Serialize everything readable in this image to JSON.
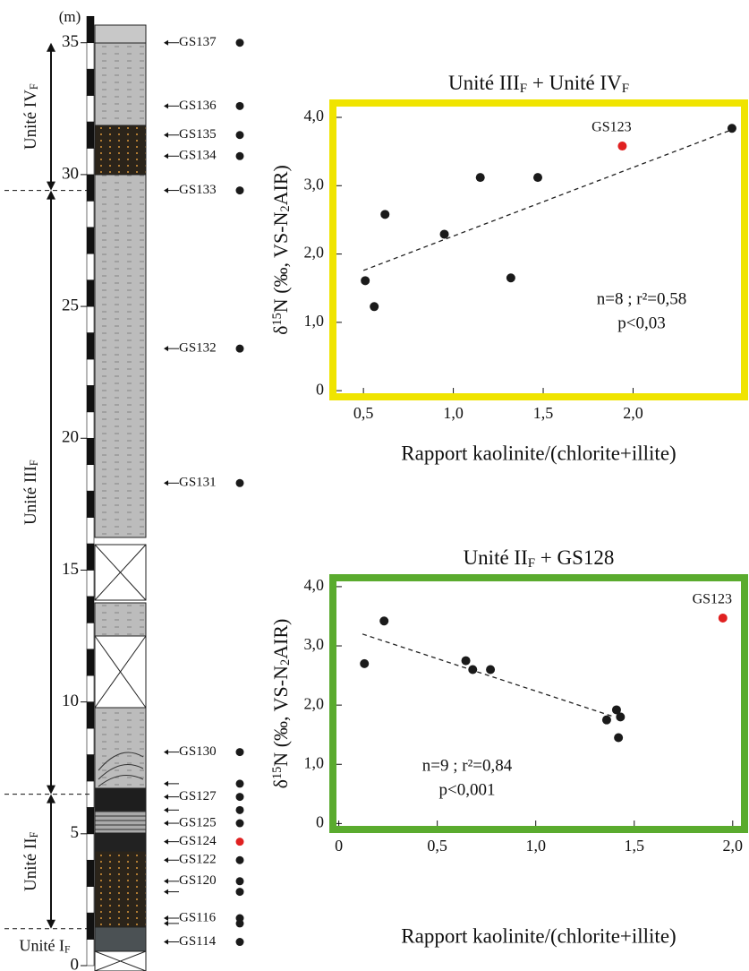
{
  "column": {
    "unit": "(m)",
    "ylim": [
      0,
      35.5
    ],
    "yticks": [
      0,
      5,
      10,
      15,
      20,
      25,
      30,
      35
    ],
    "dot_color": "#1a1a1a",
    "samples": [
      {
        "label": "GS137",
        "height": 35.0
      },
      {
        "label": "GS136",
        "height": 32.6
      },
      {
        "label": "GS135",
        "height": 31.5
      },
      {
        "label": "GS134",
        "height": 30.7
      },
      {
        "label": "GS133",
        "height": 29.4
      },
      {
        "label": "GS132",
        "height": 23.4
      },
      {
        "label": "GS131",
        "height": 18.3
      },
      {
        "label": "GS130",
        "height": 8.1
      },
      {
        "label": null,
        "height": 6.9
      },
      {
        "label": "GS127",
        "height": 6.4
      },
      {
        "label": null,
        "height": 5.9
      },
      {
        "label": "GS125",
        "height": 5.4
      },
      {
        "label": "GS124",
        "height": 4.7,
        "color": "#e02020"
      },
      {
        "label": "GS122",
        "height": 4.0
      },
      {
        "label": "GS120",
        "height": 3.2
      },
      {
        "label": null,
        "height": 2.8
      },
      {
        "label": "GS116",
        "height": 1.8
      },
      {
        "label": null,
        "height": 1.6
      },
      {
        "label": "GS114",
        "height": 0.9
      }
    ],
    "units": [
      {
        "name": "Unité IV",
        "sub": "F",
        "from": 29.4,
        "to": 35.0
      },
      {
        "name": "Unité III",
        "sub": "F",
        "from": 6.5,
        "to": 29.4
      },
      {
        "name": "Unité II",
        "sub": "F",
        "from": 1.4,
        "to": 6.5
      },
      {
        "name": "Unité I",
        "sub": "F",
        "from": 0,
        "to": 1.4
      }
    ]
  },
  "chart_data": [
    {
      "type": "scatter",
      "frame_color": "#f0e400",
      "title": [
        {
          "text": "Unité III"
        },
        {
          "text": "F",
          "pos": "sub"
        },
        {
          "text": " + Unité IV"
        },
        {
          "text": "F",
          "pos": "sub"
        }
      ],
      "xlabel": "Rapport kaolinite/(chlorite+illite)",
      "ylabel": [
        {
          "text": "δ"
        },
        {
          "text": "15",
          "pos": "sup"
        },
        {
          "text": "N (‰, VS-N"
        },
        {
          "text": "2",
          "pos": "sub"
        },
        {
          "text": "AIR)"
        }
      ],
      "xlim": [
        0.33,
        2.62
      ],
      "ylim": [
        -0.09,
        4.21
      ],
      "xticks": [
        {
          "value": 0.5,
          "label": "0,5"
        },
        {
          "value": 1.0,
          "label": "1,0"
        },
        {
          "value": 1.5,
          "label": "1,5"
        },
        {
          "value": 2.0,
          "label": "2,0"
        }
      ],
      "yticks": [
        0,
        {
          "value": 1.0,
          "label": "1,0"
        },
        {
          "value": 2.0,
          "label": "2,0"
        },
        {
          "value": 3.0,
          "label": "3,0"
        },
        {
          "value": 4.0,
          "label": "4,0"
        }
      ],
      "color": "#1a1a1a",
      "x": [
        0.51,
        0.56,
        0.62,
        0.95,
        1.15,
        1.32,
        1.47,
        2.55
      ],
      "y": [
        1.61,
        1.23,
        2.58,
        2.29,
        3.12,
        1.65,
        3.12,
        3.84
      ],
      "highlight": {
        "label": "GS123",
        "x": 1.94,
        "y": 3.58,
        "color": "#e02020"
      },
      "trend": {
        "x": [
          0.5,
          2.54
        ],
        "y": [
          1.76,
          3.81
        ]
      },
      "annotations": [
        "n=8 ; r²=0,58",
        "p<0,03"
      ]
    },
    {
      "type": "scatter",
      "frame_color": "#5aab2e",
      "title": [
        {
          "text": "Unité II"
        },
        {
          "text": "F",
          "pos": "sub"
        },
        {
          "text": " + GS128"
        }
      ],
      "xlabel": "Rapport kaolinite/(chlorite+illite)",
      "ylabel": [
        {
          "text": "δ"
        },
        {
          "text": "15",
          "pos": "sup"
        },
        {
          "text": "N (‰, VS-N"
        },
        {
          "text": "2",
          "pos": "sub"
        },
        {
          "text": "AIR)"
        }
      ],
      "xlim": [
        -0.03,
        2.06
      ],
      "ylim": [
        -0.1,
        4.15
      ],
      "xticks": [
        0,
        {
          "value": 0.5,
          "label": "0,5"
        },
        {
          "value": 1.0,
          "label": "1,0"
        },
        {
          "value": 1.5,
          "label": "1,5"
        },
        {
          "value": 2.0,
          "label": "2,0"
        }
      ],
      "yticks": [
        0,
        {
          "value": 1.0,
          "label": "1,0"
        },
        {
          "value": 2.0,
          "label": "2,0"
        },
        {
          "value": 3.0,
          "label": "3,0"
        },
        {
          "value": 4.0,
          "label": "4,0"
        }
      ],
      "color": "#1a1a1a",
      "x": [
        0.13,
        0.23,
        0.645,
        0.68,
        0.77,
        1.36,
        1.41,
        1.43,
        1.42
      ],
      "y": [
        2.7,
        3.42,
        2.75,
        2.6,
        2.6,
        1.75,
        1.92,
        1.8,
        1.45
      ],
      "highlight": {
        "label": "GS123",
        "x": 1.95,
        "y": 3.47,
        "color": "#e02020"
      },
      "trend": {
        "x": [
          0.12,
          1.4
        ],
        "y": [
          3.2,
          1.8
        ]
      },
      "annotations": [
        "n=9 ; r²=0,84",
        "p<0,001"
      ]
    }
  ]
}
